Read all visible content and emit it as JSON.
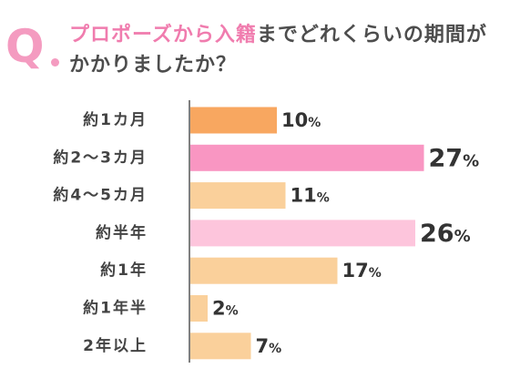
{
  "header": {
    "q_mark": "Q",
    "title_highlight": "プロポーズから入籍",
    "title_rest": "までどれくらいの期間がかかりましたか？"
  },
  "chart_data": {
    "type": "bar",
    "orientation": "horizontal",
    "categories": [
      "約1カ月",
      "約2〜3カ月",
      "約4〜5カ月",
      "約半年",
      "約1年",
      "約1年半",
      "2年以上"
    ],
    "values": [
      10,
      27,
      11,
      26,
      17,
      2,
      7
    ],
    "value_labels": [
      "10%",
      "27%",
      "11%",
      "26%",
      "17%",
      "2%",
      "7%"
    ],
    "unit": "%",
    "colors": [
      "#f8a760",
      "#f996c2",
      "#fad09b",
      "#fdc5dc",
      "#fad09b",
      "#fad09b",
      "#fad09b"
    ],
    "grid": false,
    "legend": "none"
  }
}
